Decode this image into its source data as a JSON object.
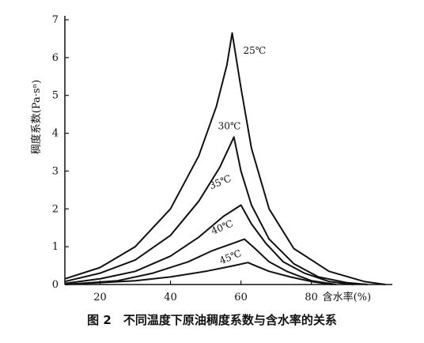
{
  "chart_data": {
    "type": "line",
    "title": "",
    "caption": "图 2　不同温度下原油稠度系数与含水率的关系",
    "ylabel": "稠度系数(Pa·sⁿ)",
    "xlabel": "含水率(%)",
    "xlim": [
      10,
      103
    ],
    "ylim": [
      0,
      7
    ],
    "x_ticks": [
      20,
      40,
      60,
      80
    ],
    "y_ticks": [
      0,
      1,
      2,
      3,
      4,
      5,
      6,
      7
    ],
    "grid": false,
    "series": [
      {
        "name": "25℃",
        "points": [
          [
            10,
            0.15
          ],
          [
            20,
            0.45
          ],
          [
            30,
            1.0
          ],
          [
            40,
            2.0
          ],
          [
            48,
            3.4
          ],
          [
            53,
            4.7
          ],
          [
            56,
            5.8
          ],
          [
            57.5,
            6.65
          ],
          [
            60,
            5.2
          ],
          [
            63,
            3.6
          ],
          [
            68,
            2.0
          ],
          [
            75,
            0.95
          ],
          [
            85,
            0.35
          ],
          [
            95,
            0.08
          ],
          [
            101,
            0.0
          ]
        ]
      },
      {
        "name": "30℃",
        "points": [
          [
            10,
            0.08
          ],
          [
            20,
            0.3
          ],
          [
            30,
            0.65
          ],
          [
            40,
            1.3
          ],
          [
            48,
            2.2
          ],
          [
            54,
            3.1
          ],
          [
            58,
            3.9
          ],
          [
            60,
            3.0
          ],
          [
            63,
            2.1
          ],
          [
            68,
            1.2
          ],
          [
            75,
            0.55
          ],
          [
            82,
            0.2
          ],
          [
            90,
            0.05
          ],
          [
            96,
            0.0
          ]
        ]
      },
      {
        "name": "35℃",
        "points": [
          [
            10,
            0.03
          ],
          [
            20,
            0.15
          ],
          [
            30,
            0.35
          ],
          [
            40,
            0.75
          ],
          [
            48,
            1.25
          ],
          [
            55,
            1.8
          ],
          [
            60,
            2.1
          ],
          [
            63,
            1.6
          ],
          [
            67,
            1.1
          ],
          [
            72,
            0.6
          ],
          [
            78,
            0.3
          ],
          [
            85,
            0.08
          ],
          [
            92,
            0.0
          ]
        ]
      },
      {
        "name": "40℃",
        "points": [
          [
            10,
            0.0
          ],
          [
            25,
            0.1
          ],
          [
            35,
            0.3
          ],
          [
            45,
            0.6
          ],
          [
            52,
            0.9
          ],
          [
            58,
            1.1
          ],
          [
            61,
            1.2
          ],
          [
            64,
            0.95
          ],
          [
            68,
            0.6
          ],
          [
            73,
            0.35
          ],
          [
            80,
            0.1
          ],
          [
            87,
            0.0
          ]
        ]
      },
      {
        "name": "45℃",
        "points": [
          [
            10,
            0.0
          ],
          [
            30,
            0.1
          ],
          [
            40,
            0.2
          ],
          [
            50,
            0.35
          ],
          [
            58,
            0.5
          ],
          [
            62,
            0.58
          ],
          [
            64,
            0.5
          ],
          [
            68,
            0.35
          ],
          [
            74,
            0.2
          ],
          [
            80,
            0.08
          ],
          [
            86,
            0.0
          ]
        ]
      }
    ]
  }
}
